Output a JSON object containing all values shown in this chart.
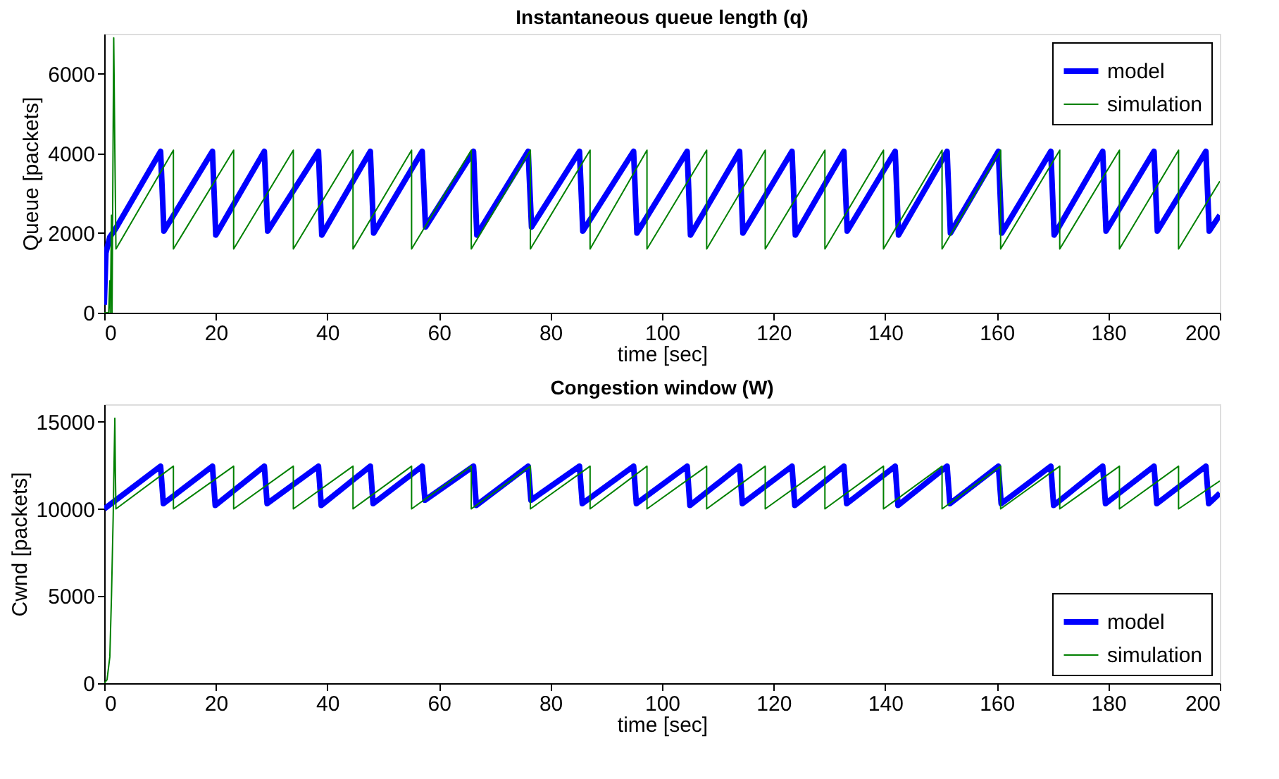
{
  "chart_data": [
    {
      "type": "line",
      "title": "Instantaneous queue length (q)",
      "xlabel": "time [sec]",
      "ylabel": "Queue [packets]",
      "xlim": [
        0,
        200
      ],
      "xticks": [
        0,
        20,
        40,
        60,
        80,
        100,
        120,
        140,
        160,
        180,
        200
      ],
      "ylim": [
        0,
        7000
      ],
      "yticks": [
        0,
        2000,
        4000,
        6000
      ],
      "grid": false,
      "legend": "top right",
      "line_style": "solid",
      "marker": "none",
      "series": [
        {
          "name": "model",
          "color": "#0000ff",
          "x": [
            0,
            0.3,
            1.0,
            2.0,
            10.1,
            10.7,
            19.4,
            20.0,
            28.7,
            29.3,
            38.4,
            39.0,
            47.7,
            48.3,
            57.0,
            57.6,
            66.2,
            66.8,
            76.0,
            76.6,
            85.2,
            85.8,
            94.9,
            95.5,
            104.5,
            105.1,
            113.9,
            114.5,
            123.3,
            123.9,
            132.6,
            133.2,
            141.8,
            142.4,
            151.1,
            151.7,
            160.3,
            160.9,
            169.7,
            170.3,
            179.0,
            179.6,
            188.2,
            188.8,
            197.5,
            198.1,
            200
          ],
          "values": [
            200,
            1500,
            1900,
            2100,
            4050,
            2050,
            4050,
            1950,
            4050,
            2050,
            4050,
            1950,
            4050,
            2000,
            4050,
            2150,
            4050,
            1950,
            4050,
            2150,
            4050,
            2050,
            4050,
            2000,
            4050,
            1950,
            4050,
            2000,
            4050,
            1950,
            4050,
            2050,
            4050,
            1950,
            4050,
            2000,
            4050,
            2000,
            4050,
            1950,
            4050,
            2050,
            4050,
            2050,
            4050,
            2050,
            2450
          ]
        },
        {
          "name": "simulation",
          "color": "#008000",
          "x": [
            0,
            0.8,
            1.0,
            1.1,
            1.3,
            1.4,
            1.7,
            1.9,
            2.1,
            12.4,
            12.4,
            23.2,
            23.2,
            33.9,
            33.9,
            44.6,
            44.6,
            55.1,
            55.1,
            65.8,
            65.8,
            76.4,
            76.4,
            87.1,
            87.1,
            97.3,
            97.3,
            108.0,
            108.0,
            118.5,
            118.5,
            129.2,
            129.2,
            139.7,
            139.7,
            150.2,
            150.2,
            160.7,
            160.7,
            171.3,
            171.3,
            182.0,
            182.0,
            192.6,
            192.6,
            200
          ],
          "values": [
            0,
            0,
            800,
            0,
            2450,
            0,
            6900,
            4100,
            1600,
            4080,
            1600,
            4080,
            1600,
            4080,
            1600,
            4080,
            1600,
            4080,
            1600,
            4080,
            1600,
            4080,
            1600,
            4080,
            1600,
            4080,
            1600,
            4080,
            1600,
            4080,
            1600,
            4080,
            1600,
            4080,
            1600,
            4080,
            1600,
            4080,
            1600,
            4080,
            1600,
            4080,
            1600,
            4080,
            1600,
            3300
          ]
        }
      ]
    },
    {
      "type": "line",
      "title": "Congestion window (W)",
      "xlabel": "time [sec]",
      "ylabel": "Cwnd [packets]",
      "xlim": [
        0,
        200
      ],
      "xticks": [
        0,
        20,
        40,
        60,
        80,
        100,
        120,
        140,
        160,
        180,
        200
      ],
      "ylim": [
        0,
        16000
      ],
      "yticks": [
        0,
        5000,
        10000,
        15000
      ],
      "grid": false,
      "legend": "bottom right",
      "line_style": "solid",
      "marker": "none",
      "series": [
        {
          "name": "model",
          "color": "#0000ff",
          "x": [
            0,
            10.1,
            10.6,
            19.4,
            19.9,
            28.7,
            29.2,
            38.4,
            38.9,
            47.7,
            48.2,
            57.0,
            57.5,
            66.2,
            66.7,
            76.0,
            76.5,
            85.2,
            85.7,
            94.9,
            95.4,
            104.5,
            105.0,
            113.9,
            114.4,
            123.3,
            123.8,
            132.6,
            133.1,
            141.8,
            142.3,
            151.1,
            151.6,
            160.3,
            160.8,
            169.7,
            170.2,
            179.0,
            179.5,
            188.2,
            188.7,
            197.5,
            198.0,
            200
          ],
          "values": [
            10000,
            12450,
            10300,
            12450,
            10200,
            12450,
            10300,
            12450,
            10200,
            12450,
            10300,
            12450,
            10500,
            12450,
            10200,
            12450,
            10500,
            12450,
            10300,
            12450,
            10300,
            12450,
            10200,
            12450,
            10300,
            12450,
            10200,
            12450,
            10300,
            12450,
            10200,
            12450,
            10300,
            12450,
            10300,
            12450,
            10200,
            12450,
            10300,
            12450,
            10300,
            12450,
            10300,
            10900
          ]
        },
        {
          "name": "simulation",
          "color": "#008000",
          "x": [
            0,
            0.5,
            1.0,
            1.3,
            1.6,
            1.9,
            2.0,
            2.1,
            12.4,
            12.4,
            23.2,
            23.2,
            33.9,
            33.9,
            44.6,
            44.6,
            55.1,
            55.1,
            65.8,
            65.8,
            76.4,
            76.4,
            87.1,
            87.1,
            97.3,
            97.3,
            108.0,
            108.0,
            118.5,
            118.5,
            129.2,
            129.2,
            139.7,
            139.7,
            150.2,
            150.2,
            160.7,
            160.7,
            171.3,
            171.3,
            182.0,
            182.0,
            192.6,
            192.6,
            200
          ],
          "values": [
            0,
            200,
            1500,
            5000,
            9500,
            15200,
            12000,
            10000,
            12450,
            10000,
            12450,
            10000,
            12450,
            10000,
            12450,
            10000,
            12450,
            10000,
            12450,
            10000,
            12450,
            10000,
            12450,
            10000,
            12450,
            10000,
            12450,
            10000,
            12450,
            10000,
            12450,
            10000,
            12450,
            10000,
            12450,
            10000,
            12450,
            10000,
            12450,
            10000,
            12450,
            10000,
            12450,
            10000,
            11600
          ]
        }
      ]
    }
  ]
}
